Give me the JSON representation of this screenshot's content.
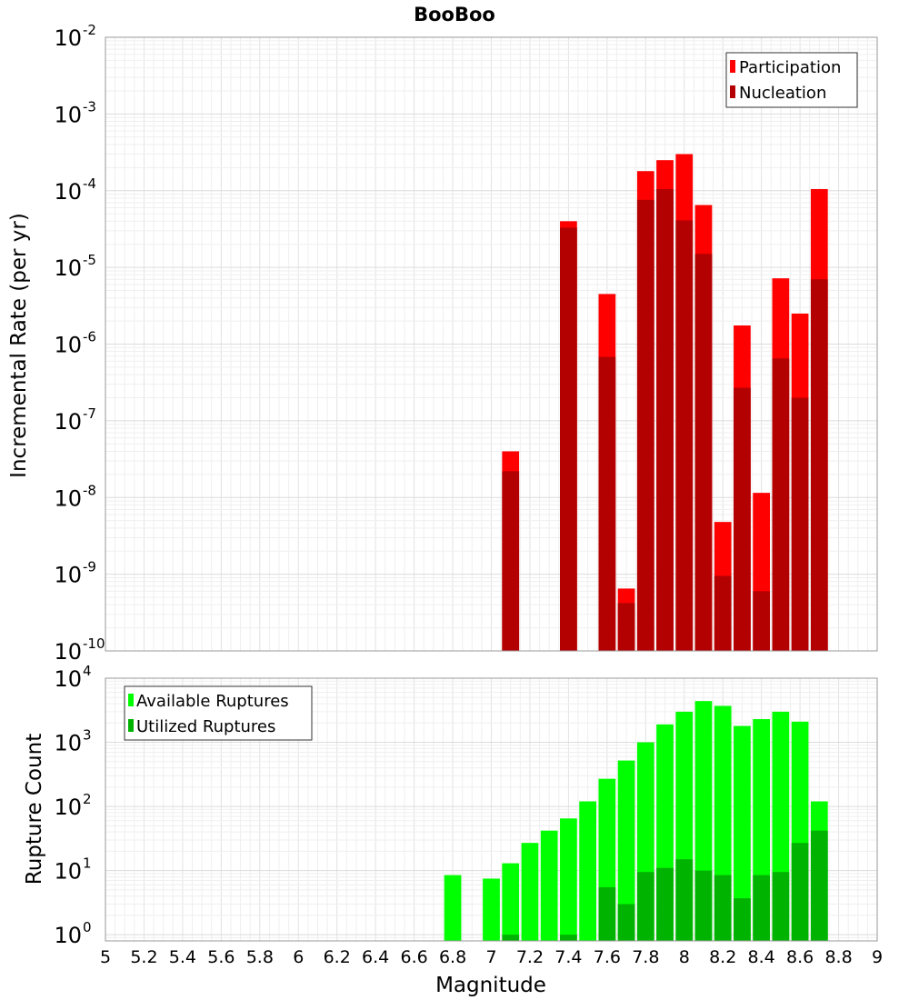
{
  "chart_data": [
    {
      "type": "bar",
      "title": "BooBoo",
      "xlabel": "",
      "ylabel": "Incremental Rate (per yr)",
      "yscale": "log",
      "ylim": [
        1e-10,
        0.01
      ],
      "xlim": [
        5,
        9
      ],
      "grid": true,
      "legend_position": "top-right",
      "y_ticks": [
        {
          "base": "10",
          "exp": "-2"
        },
        {
          "base": "10",
          "exp": "-3"
        },
        {
          "base": "10",
          "exp": "-4"
        },
        {
          "base": "10",
          "exp": "-5"
        },
        {
          "base": "10",
          "exp": "-6"
        },
        {
          "base": "10",
          "exp": "-7"
        },
        {
          "base": "10",
          "exp": "-8"
        },
        {
          "base": "10",
          "exp": "-9"
        },
        {
          "base": "10",
          "exp": "-10"
        }
      ],
      "x": [
        7.1,
        7.2,
        7.3,
        7.4,
        7.5,
        7.6,
        7.7,
        7.8,
        7.9,
        8.0,
        8.1,
        8.2,
        8.3,
        8.4,
        8.5,
        8.6,
        8.7
      ],
      "series": [
        {
          "name": "Participation",
          "color": "#ff0000",
          "values": [
            4e-08,
            null,
            null,
            4e-05,
            null,
            4.5e-06,
            6.5e-10,
            0.00018,
            0.00025,
            0.0003,
            6.5e-05,
            4.8e-09,
            1.75e-06,
            1.15e-08,
            7.2e-06,
            2.5e-06,
            0.000105
          ]
        },
        {
          "name": "Nucleation",
          "color": "#b30000",
          "values": [
            2.2e-08,
            null,
            null,
            3.3e-05,
            null,
            6.8e-07,
            4.2e-10,
            7.6e-05,
            0.000105,
            4.1e-05,
            1.5e-05,
            9.5e-10,
            2.7e-07,
            6e-10,
            6.5e-07,
            2e-07,
            7e-06
          ]
        }
      ]
    },
    {
      "type": "bar",
      "title": "",
      "xlabel": "Magnitude",
      "ylabel": "Rupture Count",
      "yscale": "log",
      "ylim": [
        0.8,
        10000
      ],
      "xlim": [
        5,
        9
      ],
      "grid": true,
      "legend_position": "top-left",
      "y_ticks": [
        {
          "base": "10",
          "exp": "4"
        },
        {
          "base": "10",
          "exp": "3"
        },
        {
          "base": "10",
          "exp": "2"
        },
        {
          "base": "10",
          "exp": "1"
        },
        {
          "base": "10",
          "exp": "0"
        }
      ],
      "x_tick_labels": [
        "5",
        "5.2",
        "5.4",
        "5.6",
        "5.8",
        "6",
        "6.2",
        "6.4",
        "6.6",
        "6.8",
        "7",
        "7.2",
        "7.4",
        "7.6",
        "7.8",
        "8",
        "8.2",
        "8.4",
        "8.6",
        "8.8",
        "9"
      ],
      "x": [
        6.8,
        6.9,
        7.0,
        7.1,
        7.2,
        7.3,
        7.4,
        7.5,
        7.6,
        7.7,
        7.8,
        7.9,
        8.0,
        8.1,
        8.2,
        8.3,
        8.4,
        8.5,
        8.6,
        8.7
      ],
      "series": [
        {
          "name": "Available Ruptures",
          "color": "#00ff00",
          "values": [
            8.5,
            null,
            7.5,
            13,
            27,
            42,
            65,
            120,
            270,
            520,
            1000,
            1900,
            3000,
            4400,
            3700,
            1800,
            2300,
            3000,
            2100,
            120
          ]
        },
        {
          "name": "Utilized Ruptures",
          "color": "#00b300",
          "values": [
            null,
            null,
            null,
            1,
            null,
            null,
            1,
            null,
            5.5,
            3,
            9.5,
            11,
            15,
            10,
            8.5,
            3.7,
            8.5,
            9.5,
            27,
            42
          ]
        }
      ]
    }
  ]
}
